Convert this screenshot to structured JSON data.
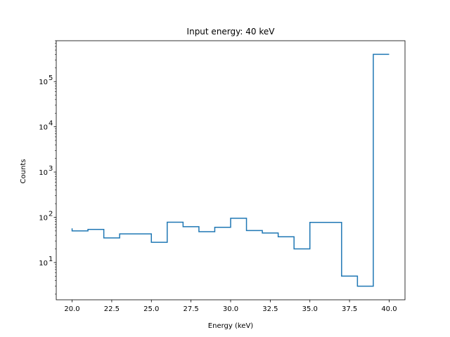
{
  "chart_data": {
    "type": "line",
    "style": "step-histogram",
    "title": "Input energy:  40 keV",
    "xlabel": "Energy (keV)",
    "ylabel": "Counts",
    "xlim": [
      19.0,
      41.0
    ],
    "ylim": [
      1.5,
      800000
    ],
    "yscale": "log",
    "grid": false,
    "color": "#1f77b4",
    "x_ticks": [
      {
        "value": 20.0,
        "label": "20.0"
      },
      {
        "value": 22.5,
        "label": "22.5"
      },
      {
        "value": 25.0,
        "label": "25.0"
      },
      {
        "value": 27.5,
        "label": "27.5"
      },
      {
        "value": 30.0,
        "label": "30.0"
      },
      {
        "value": 32.5,
        "label": "32.5"
      },
      {
        "value": 35.0,
        "label": "35.0"
      },
      {
        "value": 37.5,
        "label": "37.5"
      },
      {
        "value": 40.0,
        "label": "40.0"
      }
    ],
    "y_ticks": [
      {
        "value": 10,
        "base": "10",
        "exp": "1"
      },
      {
        "value": 100,
        "base": "10",
        "exp": "2"
      },
      {
        "value": 1000,
        "base": "10",
        "exp": "3"
      },
      {
        "value": 10000,
        "base": "10",
        "exp": "4"
      },
      {
        "value": 100000,
        "base": "10",
        "exp": "5"
      }
    ],
    "bin_edges": [
      20,
      21,
      22,
      23,
      24,
      25,
      26,
      27,
      28,
      29,
      30,
      31,
      32,
      33,
      34,
      35,
      36,
      37,
      38,
      39,
      40
    ],
    "counts": [
      50,
      54,
      35,
      43,
      43,
      28,
      78,
      62,
      48,
      60,
      95,
      51,
      45,
      37,
      20,
      77,
      77,
      5,
      3,
      400000
    ],
    "first_bin_start_value": 57
  }
}
